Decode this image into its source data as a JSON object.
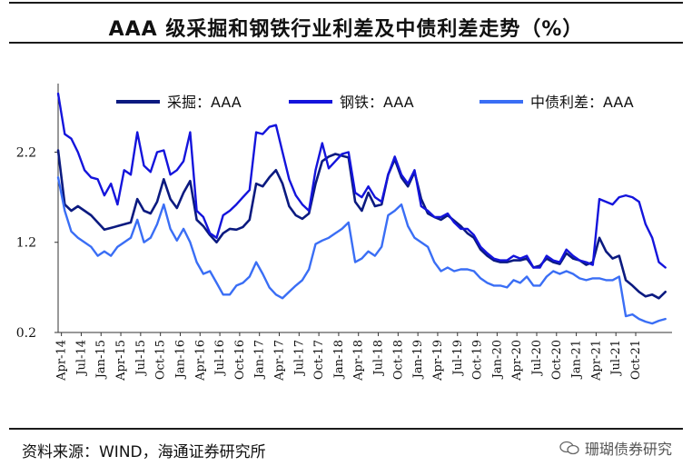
{
  "title": "AAA 级采掘和钢铁行业利差及中债利差走势（%）",
  "source": "资料来源：WIND，海通证券研究所",
  "watermark": "珊瑚债券研究",
  "chart_data": {
    "type": "line",
    "ylim": [
      0.2,
      2.9
    ],
    "yticks": [
      0.2,
      1.2,
      2.2
    ],
    "ytick_labels": [
      "0.2",
      "1.2",
      "2.2"
    ],
    "xticks": [
      "Apr-14",
      "Jul-14",
      "Jan-15",
      "Apr-15",
      "Jul-15",
      "Oct-15",
      "Jan-16",
      "Apr-16",
      "Jul-16",
      "Oct-16",
      "Jan-17",
      "Apr-17",
      "Jul-17",
      "Oct-17",
      "Jan-18",
      "Apr-18",
      "Jul-18",
      "Oct-18",
      "Jan-19",
      "Apr-19",
      "Jul-19",
      "Oct-19",
      "Jan-20",
      "Apr-20",
      "Jul-20",
      "Oct-20",
      "Jan-21",
      "Apr-21",
      "Jul-21",
      "Oct-21"
    ],
    "x_range": [
      0,
      93
    ],
    "series": [
      {
        "name": "采掘：AAA",
        "color": "#0b1a80",
        "width": 2.6,
        "points": [
          [
            0,
            2.22
          ],
          [
            1,
            1.62
          ],
          [
            2,
            1.55
          ],
          [
            3,
            1.6
          ],
          [
            4,
            1.55
          ],
          [
            5,
            1.5
          ],
          [
            6,
            1.42
          ],
          [
            7,
            1.34
          ],
          [
            8,
            1.36
          ],
          [
            9,
            1.38
          ],
          [
            10,
            1.4
          ],
          [
            11,
            1.42
          ],
          [
            12,
            1.68
          ],
          [
            13,
            1.55
          ],
          [
            14,
            1.52
          ],
          [
            15,
            1.65
          ],
          [
            16,
            1.9
          ],
          [
            17,
            1.68
          ],
          [
            18,
            1.58
          ],
          [
            19,
            1.75
          ],
          [
            20,
            1.88
          ],
          [
            21,
            1.45
          ],
          [
            22,
            1.38
          ],
          [
            23,
            1.28
          ],
          [
            24,
            1.2
          ],
          [
            25,
            1.3
          ],
          [
            26,
            1.35
          ],
          [
            27,
            1.34
          ],
          [
            28,
            1.37
          ],
          [
            29,
            1.45
          ],
          [
            30,
            1.85
          ],
          [
            31,
            1.82
          ],
          [
            32,
            1.92
          ],
          [
            33,
            2.0
          ],
          [
            34,
            1.85
          ],
          [
            35,
            1.6
          ],
          [
            36,
            1.5
          ],
          [
            37,
            1.46
          ],
          [
            38,
            1.52
          ],
          [
            39,
            1.85
          ],
          [
            40,
            2.1
          ],
          [
            41,
            2.15
          ],
          [
            42,
            2.18
          ],
          [
            43,
            2.16
          ],
          [
            44,
            2.14
          ],
          [
            45,
            1.65
          ],
          [
            46,
            1.55
          ],
          [
            47,
            1.75
          ],
          [
            48,
            1.6
          ],
          [
            49,
            1.62
          ],
          [
            50,
            1.95
          ],
          [
            51,
            2.12
          ],
          [
            52,
            1.92
          ],
          [
            53,
            1.82
          ],
          [
            54,
            1.98
          ],
          [
            55,
            1.68
          ],
          [
            56,
            1.52
          ],
          [
            57,
            1.48
          ],
          [
            58,
            1.45
          ],
          [
            59,
            1.5
          ],
          [
            60,
            1.44
          ],
          [
            61,
            1.38
          ],
          [
            62,
            1.3
          ],
          [
            63,
            1.25
          ],
          [
            64,
            1.12
          ],
          [
            65,
            1.05
          ],
          [
            66,
            1.0
          ],
          [
            67,
            0.98
          ],
          [
            68,
            0.98
          ],
          [
            69,
            1.0
          ],
          [
            70,
            1.0
          ],
          [
            71,
            1.02
          ],
          [
            72,
            0.92
          ],
          [
            73,
            0.94
          ],
          [
            74,
            1.02
          ],
          [
            75,
            0.98
          ],
          [
            76,
            0.96
          ],
          [
            77,
            1.08
          ],
          [
            78,
            1.02
          ],
          [
            79,
            1.0
          ],
          [
            80,
            0.95
          ],
          [
            81,
            0.98
          ],
          [
            82,
            1.25
          ],
          [
            83,
            1.1
          ],
          [
            84,
            1.02
          ],
          [
            85,
            1.05
          ],
          [
            86,
            0.78
          ],
          [
            87,
            0.72
          ],
          [
            88,
            0.65
          ],
          [
            89,
            0.6
          ],
          [
            90,
            0.62
          ],
          [
            91,
            0.58
          ],
          [
            92,
            0.65
          ]
        ]
      },
      {
        "name": "钢铁：AAA",
        "color": "#1414dc",
        "width": 2.4,
        "points": [
          [
            0,
            2.85
          ],
          [
            1,
            2.4
          ],
          [
            2,
            2.35
          ],
          [
            3,
            2.2
          ],
          [
            4,
            2.0
          ],
          [
            5,
            1.92
          ],
          [
            6,
            1.9
          ],
          [
            7,
            1.72
          ],
          [
            8,
            1.85
          ],
          [
            9,
            1.62
          ],
          [
            10,
            2.0
          ],
          [
            11,
            1.95
          ],
          [
            12,
            2.42
          ],
          [
            13,
            2.05
          ],
          [
            14,
            1.98
          ],
          [
            15,
            2.2
          ],
          [
            16,
            2.22
          ],
          [
            17,
            1.95
          ],
          [
            18,
            2.0
          ],
          [
            19,
            2.1
          ],
          [
            20,
            2.42
          ],
          [
            21,
            1.55
          ],
          [
            22,
            1.48
          ],
          [
            23,
            1.3
          ],
          [
            24,
            1.25
          ],
          [
            25,
            1.5
          ],
          [
            26,
            1.55
          ],
          [
            27,
            1.62
          ],
          [
            28,
            1.7
          ],
          [
            29,
            1.78
          ],
          [
            30,
            2.42
          ],
          [
            31,
            2.4
          ],
          [
            32,
            2.48
          ],
          [
            33,
            2.5
          ],
          [
            34,
            2.2
          ],
          [
            35,
            1.9
          ],
          [
            36,
            1.72
          ],
          [
            37,
            1.62
          ],
          [
            38,
            1.55
          ],
          [
            39,
            2.0
          ],
          [
            40,
            2.3
          ],
          [
            41,
            2.02
          ],
          [
            42,
            2.1
          ],
          [
            43,
            2.18
          ],
          [
            44,
            2.2
          ],
          [
            45,
            1.75
          ],
          [
            46,
            1.7
          ],
          [
            47,
            1.82
          ],
          [
            48,
            1.7
          ],
          [
            49,
            1.65
          ],
          [
            50,
            1.95
          ],
          [
            51,
            2.15
          ],
          [
            52,
            1.95
          ],
          [
            53,
            1.85
          ],
          [
            54,
            2.0
          ],
          [
            55,
            1.6
          ],
          [
            56,
            1.55
          ],
          [
            57,
            1.48
          ],
          [
            58,
            1.48
          ],
          [
            59,
            1.52
          ],
          [
            60,
            1.42
          ],
          [
            61,
            1.35
          ],
          [
            62,
            1.35
          ],
          [
            63,
            1.28
          ],
          [
            64,
            1.15
          ],
          [
            65,
            1.08
          ],
          [
            66,
            1.02
          ],
          [
            67,
            1.0
          ],
          [
            68,
            1.0
          ],
          [
            69,
            1.05
          ],
          [
            70,
            1.02
          ],
          [
            71,
            1.05
          ],
          [
            72,
            0.92
          ],
          [
            73,
            0.92
          ],
          [
            74,
            1.05
          ],
          [
            75,
            1.0
          ],
          [
            76,
            0.98
          ],
          [
            77,
            1.12
          ],
          [
            78,
            1.05
          ],
          [
            79,
            1.0
          ],
          [
            80,
            0.98
          ],
          [
            81,
            0.95
          ],
          [
            82,
            1.68
          ],
          [
            83,
            1.65
          ],
          [
            84,
            1.62
          ],
          [
            85,
            1.7
          ],
          [
            86,
            1.72
          ],
          [
            87,
            1.7
          ],
          [
            88,
            1.65
          ],
          [
            89,
            1.4
          ],
          [
            90,
            1.25
          ],
          [
            91,
            0.98
          ],
          [
            92,
            0.92
          ]
        ]
      },
      {
        "name": "中债利差：AAA",
        "color": "#3a6ef5",
        "width": 2.4,
        "points": [
          [
            0,
            1.92
          ],
          [
            1,
            1.55
          ],
          [
            2,
            1.32
          ],
          [
            3,
            1.25
          ],
          [
            4,
            1.2
          ],
          [
            5,
            1.15
          ],
          [
            6,
            1.05
          ],
          [
            7,
            1.1
          ],
          [
            8,
            1.05
          ],
          [
            9,
            1.15
          ],
          [
            10,
            1.2
          ],
          [
            11,
            1.25
          ],
          [
            12,
            1.45
          ],
          [
            13,
            1.2
          ],
          [
            14,
            1.25
          ],
          [
            15,
            1.4
          ],
          [
            16,
            1.62
          ],
          [
            17,
            1.35
          ],
          [
            18,
            1.22
          ],
          [
            19,
            1.35
          ],
          [
            20,
            1.2
          ],
          [
            21,
            0.98
          ],
          [
            22,
            0.85
          ],
          [
            23,
            0.88
          ],
          [
            24,
            0.75
          ],
          [
            25,
            0.62
          ],
          [
            26,
            0.62
          ],
          [
            27,
            0.72
          ],
          [
            28,
            0.75
          ],
          [
            29,
            0.82
          ],
          [
            30,
            0.98
          ],
          [
            31,
            0.85
          ],
          [
            32,
            0.7
          ],
          [
            33,
            0.62
          ],
          [
            34,
            0.58
          ],
          [
            35,
            0.65
          ],
          [
            36,
            0.72
          ],
          [
            37,
            0.78
          ],
          [
            38,
            0.9
          ],
          [
            39,
            1.18
          ],
          [
            40,
            1.22
          ],
          [
            41,
            1.25
          ],
          [
            42,
            1.3
          ],
          [
            43,
            1.35
          ],
          [
            44,
            1.42
          ],
          [
            45,
            0.98
          ],
          [
            46,
            1.02
          ],
          [
            47,
            1.1
          ],
          [
            48,
            1.05
          ],
          [
            49,
            1.15
          ],
          [
            50,
            1.5
          ],
          [
            51,
            1.55
          ],
          [
            52,
            1.62
          ],
          [
            53,
            1.38
          ],
          [
            54,
            1.25
          ],
          [
            55,
            1.2
          ],
          [
            56,
            1.15
          ],
          [
            57,
            0.98
          ],
          [
            58,
            0.88
          ],
          [
            59,
            0.92
          ],
          [
            60,
            0.88
          ],
          [
            61,
            0.9
          ],
          [
            62,
            0.9
          ],
          [
            63,
            0.88
          ],
          [
            64,
            0.8
          ],
          [
            65,
            0.75
          ],
          [
            66,
            0.72
          ],
          [
            67,
            0.72
          ],
          [
            68,
            0.7
          ],
          [
            69,
            0.78
          ],
          [
            70,
            0.75
          ],
          [
            71,
            0.82
          ],
          [
            72,
            0.72
          ],
          [
            73,
            0.72
          ],
          [
            74,
            0.82
          ],
          [
            75,
            0.88
          ],
          [
            76,
            0.85
          ],
          [
            77,
            0.88
          ],
          [
            78,
            0.85
          ],
          [
            79,
            0.8
          ],
          [
            80,
            0.78
          ],
          [
            81,
            0.8
          ],
          [
            82,
            0.8
          ],
          [
            83,
            0.78
          ],
          [
            84,
            0.78
          ],
          [
            85,
            0.82
          ],
          [
            86,
            0.38
          ],
          [
            87,
            0.4
          ],
          [
            88,
            0.35
          ],
          [
            89,
            0.32
          ],
          [
            90,
            0.3
          ],
          [
            91,
            0.33
          ],
          [
            92,
            0.35
          ]
        ]
      }
    ]
  }
}
